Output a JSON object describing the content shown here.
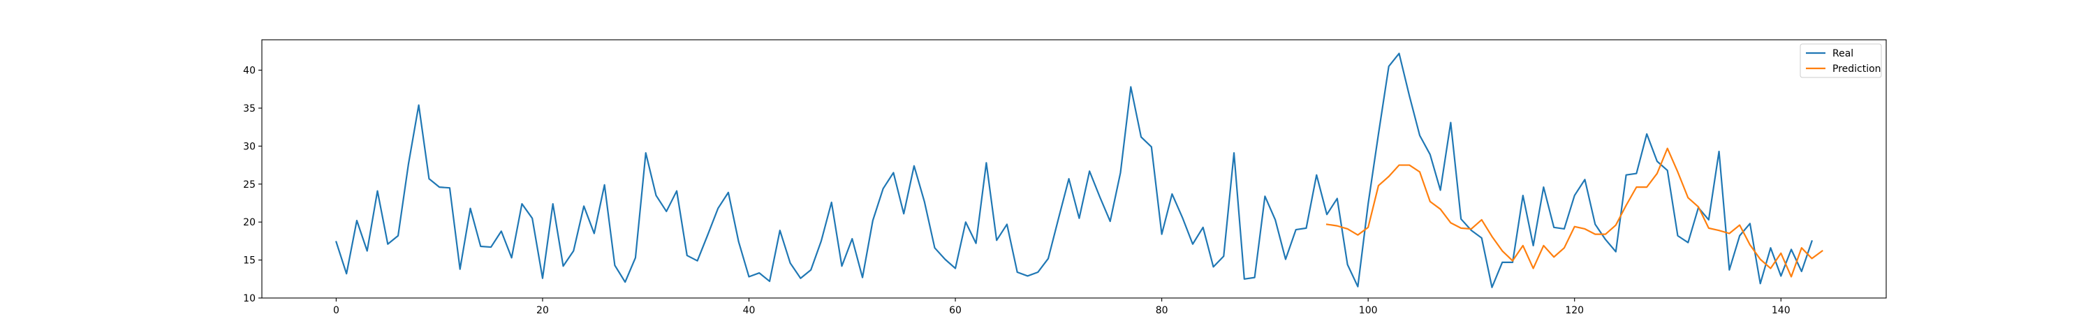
{
  "chart_data": {
    "type": "line",
    "title": "",
    "xlabel": "",
    "ylabel": "",
    "xlim": [
      -7.2,
      150.2
    ],
    "ylim": [
      10,
      44
    ],
    "xticks": [
      0,
      20,
      40,
      60,
      80,
      100,
      120,
      140
    ],
    "yticks": [
      10,
      15,
      20,
      25,
      30,
      35,
      40
    ],
    "grid": false,
    "legend_position": "top-right",
    "series": [
      {
        "name": "Real",
        "color": "#1f77b4",
        "x_start": 0,
        "values": [
          17.4,
          13.2,
          20.2,
          16.2,
          24.1,
          17.1,
          18.2,
          27.6,
          35.4,
          25.7,
          24.6,
          24.5,
          13.8,
          21.8,
          16.8,
          16.7,
          18.8,
          15.3,
          22.4,
          20.5,
          12.6,
          22.4,
          14.2,
          16.2,
          22.1,
          18.5,
          24.9,
          14.3,
          12.1,
          15.3,
          29.1,
          23.5,
          21.4,
          24.1,
          15.6,
          14.9,
          18.3,
          21.8,
          23.9,
          17.4,
          12.8,
          13.3,
          12.2,
          18.9,
          14.6,
          12.6,
          13.7,
          17.5,
          22.6,
          14.2,
          17.8,
          12.7,
          20.2,
          24.4,
          26.5,
          21.1,
          27.4,
          22.7,
          16.6,
          15.1,
          13.9,
          20.0,
          17.2,
          27.8,
          17.6,
          19.7,
          13.4,
          12.9,
          13.4,
          15.2,
          20.5,
          25.7,
          20.5,
          26.7,
          23.3,
          20.1,
          26.5,
          37.8,
          31.2,
          29.9,
          18.4,
          23.7,
          20.6,
          17.1,
          19.3,
          14.1,
          15.5,
          29.1,
          12.5,
          12.7,
          23.4,
          20.3,
          15.1,
          19.0,
          19.2,
          26.2,
          21.0,
          23.1,
          14.4,
          11.5,
          22.4,
          31.6,
          40.5,
          42.2,
          36.6,
          31.4,
          28.9,
          24.2,
          33.1,
          20.4,
          18.9,
          17.9,
          11.4,
          14.7,
          14.7,
          23.5,
          16.9,
          24.6,
          19.3,
          19.1,
          23.5,
          25.6,
          19.7,
          17.7,
          16.1,
          26.2,
          26.4,
          31.6,
          28.0,
          26.8,
          18.2,
          17.3,
          21.9,
          20.3,
          29.3,
          13.7,
          18.2,
          19.8,
          11.9,
          16.6,
          12.9,
          16.4,
          13.5,
          17.5
        ]
      },
      {
        "name": "Prediction",
        "color": "#ff7f0e",
        "x_start": 96,
        "values": [
          19.7,
          19.5,
          19.1,
          18.3,
          19.3,
          24.8,
          26.0,
          27.5,
          27.5,
          26.6,
          22.7,
          21.7,
          19.9,
          19.2,
          19.1,
          20.3,
          18.1,
          16.2,
          14.9,
          16.9,
          13.9,
          16.9,
          15.4,
          16.6,
          19.4,
          19.1,
          18.4,
          18.4,
          19.6,
          22.2,
          24.6,
          24.6,
          26.4,
          29.7,
          26.6,
          23.2,
          22.0,
          19.2,
          18.9,
          18.5,
          19.6,
          17.0,
          15.1,
          13.9,
          15.9,
          12.8,
          16.6,
          15.2,
          16.2
        ]
      }
    ]
  }
}
